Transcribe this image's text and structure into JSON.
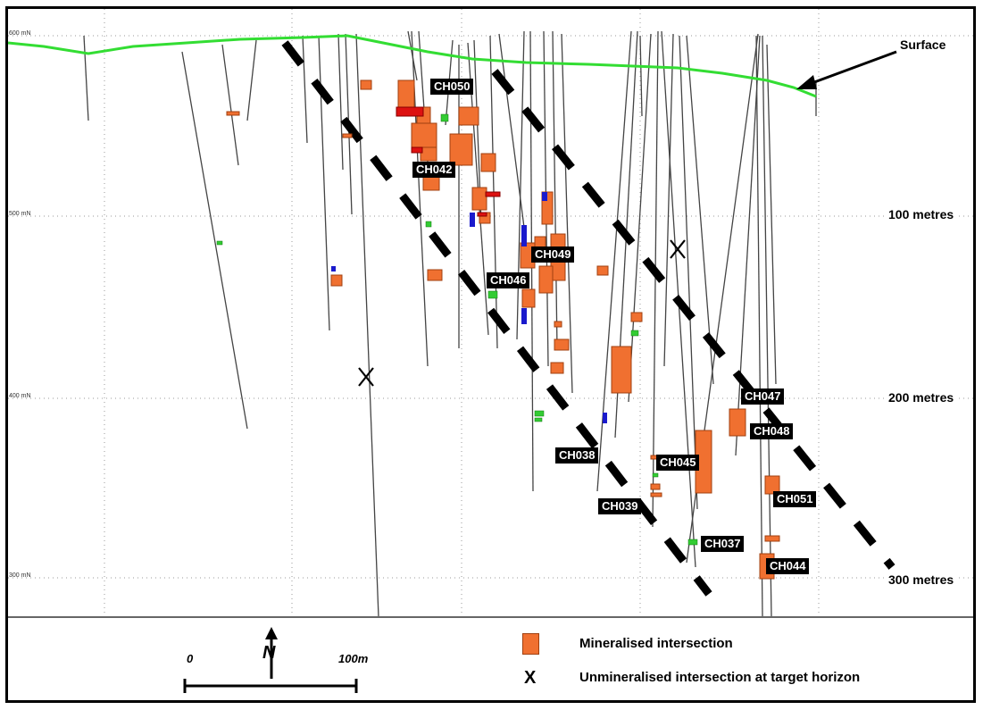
{
  "surface_label": "Surface",
  "depth_labels": [
    "100 metres",
    "200 metres",
    "300 metres"
  ],
  "grid_labels": [
    "600 mN",
    "500 mN",
    "400 mN",
    "300 mN"
  ],
  "hole_tags": [
    "CH050",
    "CH042",
    "CH049",
    "CH046",
    "CH047",
    "CH048",
    "CH038",
    "CH045",
    "CH039",
    "CH051",
    "CH037",
    "CH044"
  ],
  "legend": {
    "mineralised": "Mineralised intersection",
    "unmineralised_symbol": "X",
    "unmineralised": "Unmineralised intersection at target horizon"
  },
  "scale": {
    "start": "0",
    "end": "100m",
    "north": "N"
  },
  "colors": {
    "surface": "#33dd33",
    "mineralised": "#f07030",
    "mineralised_edge": "#a04010",
    "high_grade": "#dd1111",
    "blue_zone": "#1a1acc",
    "green_zone": "#33cc33",
    "target_horizon": "#000000",
    "grid": "#888888"
  }
}
